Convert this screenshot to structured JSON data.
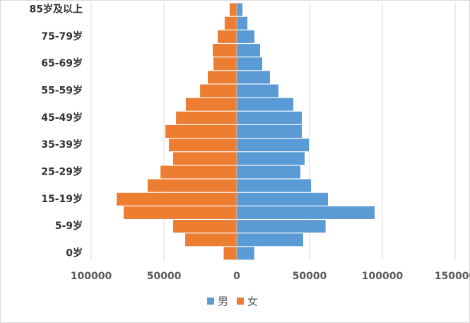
{
  "chart_data": {
    "type": "bar",
    "orientation": "horizontal",
    "stacked": "overlap",
    "categories": [
      "0岁",
      null,
      "5-9岁",
      null,
      "15-19岁",
      null,
      "25-29岁",
      null,
      "35-39岁",
      null,
      "45-49岁",
      null,
      "55-59岁",
      null,
      "65-69岁",
      null,
      "75-79岁",
      null,
      "85岁及以上"
    ],
    "series": [
      {
        "name": "男",
        "color": "#5b9bd5",
        "values": [
          12000,
          45600,
          61000,
          94700,
          62600,
          51000,
          43700,
          46600,
          49500,
          44700,
          44700,
          38800,
          28600,
          22800,
          17500,
          16000,
          12100,
          7300,
          3900
        ]
      },
      {
        "name": "女",
        "color": "#ed7d31",
        "values": [
          -9000,
          -35400,
          -43700,
          -77700,
          -82500,
          -61200,
          -52400,
          -43700,
          -46600,
          -49000,
          -41700,
          -35000,
          -25200,
          -19900,
          -16000,
          -16500,
          -13100,
          -8300,
          -4900
        ]
      }
    ],
    "xlim": [
      -100000,
      150000
    ],
    "xticks": [
      {
        "value": -100000,
        "label": "100000"
      },
      {
        "value": -50000,
        "label": "50000"
      },
      0,
      50000,
      100000,
      150000
    ],
    "grid": true,
    "legend": "bottom"
  }
}
